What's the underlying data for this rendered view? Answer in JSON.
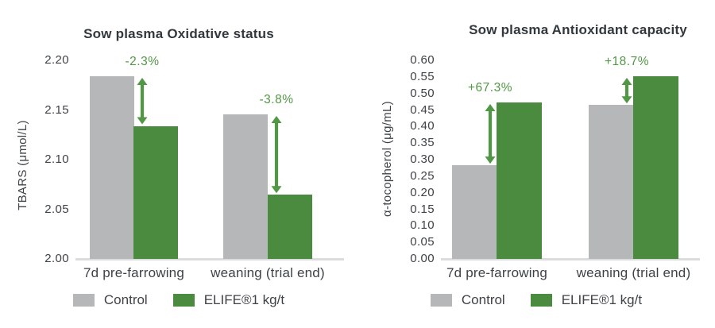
{
  "figure": {
    "colors": {
      "control_gray": "#b5b7b9",
      "elife_green": "#4b8b3f",
      "accent_green": "#519745",
      "text_dark": "#33383d",
      "axis_line_gray": "#dbdcdd"
    }
  },
  "chart_data": [
    {
      "type": "bar",
      "title": "Sow plasma Oxidative status",
      "y_axis": {
        "label": "TBARS (μmol/L)",
        "min": 2.0,
        "max": 2.2,
        "step": 0.05,
        "decimals": 2
      },
      "ylim": [
        2.0,
        2.2
      ],
      "categories": [
        "7d pre-farrowing",
        "weaning (trial end)"
      ],
      "series": [
        {
          "name": "Control",
          "color": "#b5b7b9",
          "values": [
            2.184,
            2.146
          ]
        },
        {
          "name": "ELIFE®1 kg/t",
          "color": "#4b8b3f",
          "values": [
            2.134,
            2.065
          ]
        }
      ],
      "annotations": [
        {
          "group": 0,
          "label": "-2.3%"
        },
        {
          "group": 1,
          "label": "-3.8%"
        }
      ],
      "legend_position": "bottom",
      "grid": false
    },
    {
      "type": "bar",
      "title": "Sow plasma Antioxidant capacity",
      "y_axis": {
        "label": "α-tocopherol (μg/mL)",
        "min": 0.0,
        "max": 0.6,
        "step": 0.05,
        "decimals": 2
      },
      "ylim": [
        0.0,
        0.6
      ],
      "categories": [
        "7d pre-farrowing",
        "weaning (trial end)"
      ],
      "series": [
        {
          "name": "Control",
          "color": "#b5b7b9",
          "values": [
            0.283,
            0.465
          ]
        },
        {
          "name": "ELIFE®1 kg/t",
          "color": "#4b8b3f",
          "values": [
            0.473,
            0.552
          ]
        }
      ],
      "annotations": [
        {
          "group": 0,
          "label": "+67.3%"
        },
        {
          "group": 1,
          "label": "+18.7%"
        }
      ],
      "legend_position": "bottom",
      "grid": false
    }
  ]
}
